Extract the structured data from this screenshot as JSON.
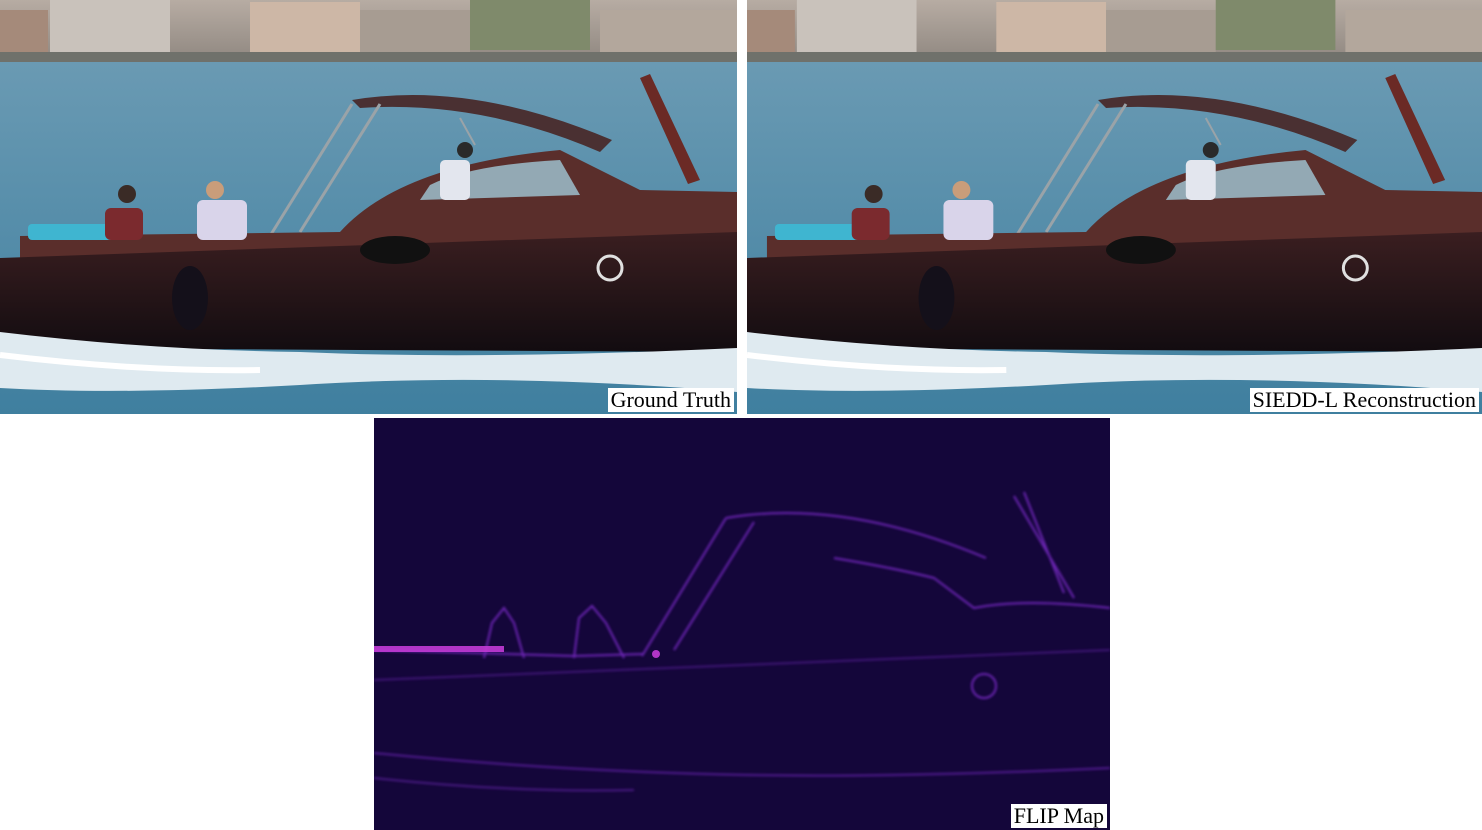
{
  "panels": {
    "ground_truth": {
      "caption": "Ground Truth"
    },
    "reconstruction": {
      "caption": "SIEDD-L Reconstruction"
    },
    "flip_map": {
      "caption": "FLIP Map"
    }
  },
  "colors": {
    "water": "#4d8aa8",
    "hull_dark": "#1d1418",
    "hull_wood": "#5a2e2b",
    "canopy": "#4a3032",
    "flip_background": "#14063a",
    "flip_edges": "#8a2fd6"
  }
}
